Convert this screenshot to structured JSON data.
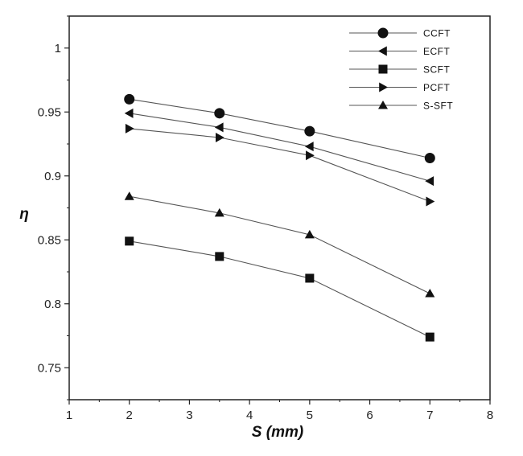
{
  "chart_data": {
    "type": "line",
    "title": "",
    "xlabel": "S (mm)",
    "ylabel": "η",
    "xlim": [
      1,
      8
    ],
    "ylim": [
      0.725,
      1.025
    ],
    "xticks": [
      "1",
      "2",
      "3",
      "4",
      "5",
      "6",
      "7",
      "8"
    ],
    "yticks": [
      "0.75",
      "0.8",
      "0.85",
      "0.9",
      "0.95",
      "1"
    ],
    "grid": false,
    "legend_position": "top-right",
    "x": [
      2,
      3.5,
      5,
      7
    ],
    "series": [
      {
        "name": "CCFT",
        "marker": "circle",
        "values": [
          0.96,
          0.949,
          0.935,
          0.914
        ]
      },
      {
        "name": "ECFT",
        "marker": "triangle-left",
        "values": [
          0.949,
          0.938,
          0.923,
          0.896
        ]
      },
      {
        "name": "SCFT",
        "marker": "square",
        "values": [
          0.849,
          0.837,
          0.82,
          0.774
        ]
      },
      {
        "name": "PCFT",
        "marker": "triangle-right",
        "values": [
          0.937,
          0.93,
          0.916,
          0.88
        ]
      },
      {
        "name": "S-SFT",
        "marker": "triangle-up",
        "values": [
          0.884,
          0.871,
          0.854,
          0.808
        ]
      }
    ],
    "colors": {
      "line": "#555555",
      "marker": "#111111",
      "axis": "#222222"
    }
  }
}
